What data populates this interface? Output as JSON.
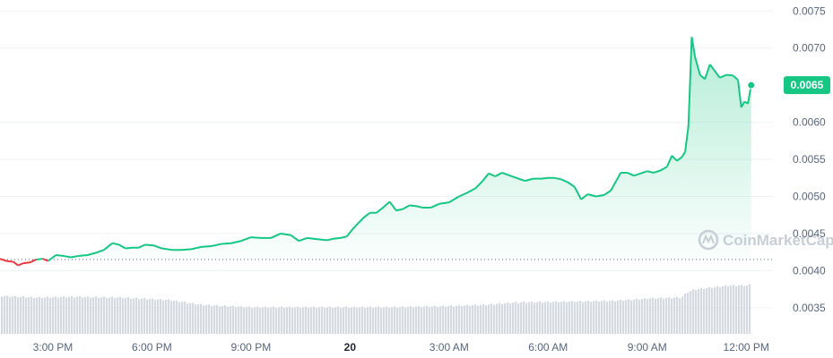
{
  "chart_data": {
    "type": "line",
    "watermark": "CoinMarketCap",
    "reference_price": 0.00415,
    "current_price": 0.0065,
    "current_price_label": "0.0065",
    "y_ticks": [
      {
        "value": 0.0075,
        "label": "0.0075"
      },
      {
        "value": 0.007,
        "label": "0.0070"
      },
      {
        "value": 0.006,
        "label": "0.0060"
      },
      {
        "value": 0.0055,
        "label": "0.0055"
      },
      {
        "value": 0.005,
        "label": "0.0050"
      },
      {
        "value": 0.0045,
        "label": "0.0045"
      },
      {
        "value": 0.004,
        "label": "0.0040"
      },
      {
        "value": 0.0035,
        "label": "0.0035"
      }
    ],
    "ylim": [
      0.0031,
      0.0076
    ],
    "x_ticks": [
      {
        "hour": 15,
        "label": "3:00 PM",
        "bold": false
      },
      {
        "hour": 18,
        "label": "6:00 PM",
        "bold": false
      },
      {
        "hour": 21,
        "label": "9:00 PM",
        "bold": false
      },
      {
        "hour": 24,
        "label": "20",
        "bold": true
      },
      {
        "hour": 27,
        "label": "3:00 AM",
        "bold": false
      },
      {
        "hour": 30,
        "label": "6:00 AM",
        "bold": false
      },
      {
        "hour": 33,
        "label": "9:00 AM",
        "bold": false
      },
      {
        "hour": 36,
        "label": "12:00 PM",
        "bold": false
      }
    ],
    "xlim": [
      13.4,
      36.7
    ],
    "colors": {
      "up": "#16c784",
      "down": "#ea3943",
      "volume": "#d5d9e0",
      "grid": "#eff2f5",
      "reference": "#58667e"
    },
    "series": [
      {
        "x": [
          13.4,
          13.6,
          13.8,
          13.95,
          14.1,
          14.3,
          14.5,
          14.7,
          14.85,
          15.1,
          15.3,
          15.55,
          15.8,
          16.05,
          16.3,
          16.55,
          16.8,
          17.0,
          17.2,
          17.4,
          17.6,
          17.8,
          18.05,
          18.3,
          18.6,
          18.9,
          19.2,
          19.5,
          19.8,
          20.1,
          20.4,
          20.7,
          21.0,
          21.3,
          21.6,
          21.9,
          22.2,
          22.45,
          22.7,
          22.9,
          23.1,
          23.3,
          23.5,
          23.7,
          23.9,
          24.1,
          24.4,
          24.6,
          24.8,
          25.0,
          25.2,
          25.4,
          25.6,
          25.8,
          26.0,
          26.2,
          26.45,
          26.7,
          27.0,
          27.3,
          27.55,
          27.8,
          28.0,
          28.2,
          28.4,
          28.6,
          28.85,
          29.1,
          29.3,
          29.55,
          29.8,
          30.0,
          30.2,
          30.4,
          30.6,
          30.8,
          31.0,
          31.2,
          31.45,
          31.7,
          31.9,
          32.05,
          32.2,
          32.4,
          32.6,
          32.8,
          33.0,
          33.2,
          33.4,
          33.6,
          33.75,
          33.9,
          34.05,
          34.15,
          34.25,
          34.35,
          34.45,
          34.6,
          34.75,
          34.9,
          35.0,
          35.2,
          35.4,
          35.6,
          35.75,
          35.85,
          35.95,
          36.05,
          36.15
        ],
        "y": [
          0.00416,
          0.00413,
          0.00412,
          0.00407,
          0.0041,
          0.00411,
          0.00415,
          0.00416,
          0.00413,
          0.00421,
          0.0042,
          0.00418,
          0.0042,
          0.00421,
          0.00424,
          0.00428,
          0.00437,
          0.00435,
          0.0043,
          0.00431,
          0.00431,
          0.00435,
          0.00434,
          0.0043,
          0.00428,
          0.00428,
          0.00429,
          0.00432,
          0.00433,
          0.00436,
          0.00437,
          0.0044,
          0.00445,
          0.00444,
          0.00444,
          0.0045,
          0.00448,
          0.0044,
          0.00444,
          0.00443,
          0.00442,
          0.00441,
          0.00443,
          0.00444,
          0.00446,
          0.00457,
          0.00471,
          0.00478,
          0.00478,
          0.00485,
          0.00493,
          0.00481,
          0.00483,
          0.00488,
          0.00487,
          0.00485,
          0.00485,
          0.0049,
          0.00492,
          0.005,
          0.00505,
          0.00511,
          0.0052,
          0.00531,
          0.00527,
          0.00532,
          0.00528,
          0.00524,
          0.00521,
          0.00524,
          0.00524,
          0.00525,
          0.00525,
          0.00523,
          0.00519,
          0.00513,
          0.00496,
          0.00503,
          0.005,
          0.00502,
          0.00508,
          0.0052,
          0.00532,
          0.00532,
          0.00528,
          0.00531,
          0.00534,
          0.00532,
          0.00535,
          0.0054,
          0.00555,
          0.00548,
          0.00553,
          0.0056,
          0.00595,
          0.00715,
          0.00688,
          0.00664,
          0.00658,
          0.00678,
          0.00672,
          0.0066,
          0.00664,
          0.00663,
          0.00657,
          0.0062,
          0.00628,
          0.00625,
          0.0065
        ]
      }
    ],
    "volume": {
      "x": [
        13.4,
        14.5,
        15.5,
        17.0,
        18.5,
        19.5,
        21.0,
        22.5,
        24.0,
        25.0,
        26.5,
        28.0,
        29.0,
        30.5,
        32.0,
        33.0,
        34.0,
        34.2,
        34.4,
        35.0,
        35.5,
        36.0,
        36.15
      ],
      "level": [
        0.47,
        0.45,
        0.46,
        0.45,
        0.42,
        0.36,
        0.33,
        0.33,
        0.33,
        0.33,
        0.34,
        0.36,
        0.39,
        0.4,
        0.41,
        0.44,
        0.45,
        0.52,
        0.55,
        0.58,
        0.6,
        0.6,
        0.62
      ]
    }
  }
}
